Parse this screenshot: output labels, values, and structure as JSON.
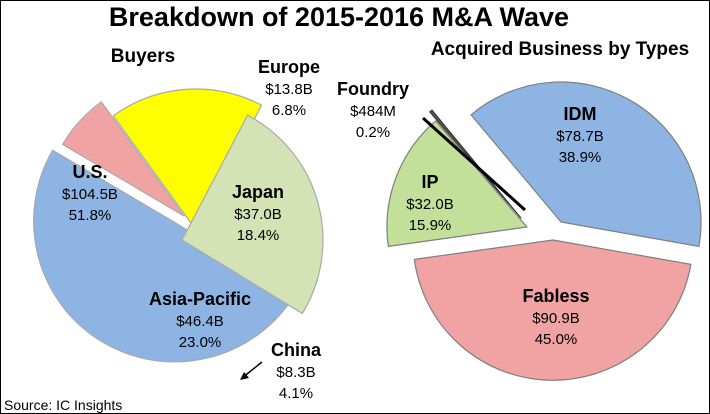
{
  "title": "Breakdown of 2015-2016 M&A Wave",
  "source": "Source: IC Insights",
  "colors": {
    "blue": "#8db4e2",
    "red": "#f1a3a3",
    "yellow": "#ffff00",
    "green": "#d4e3b5",
    "green_ip": "#c3e09a",
    "slice_stroke": "#a9a9a9",
    "outline": "#000000"
  },
  "chart_data": [
    {
      "type": "pie",
      "title": "Buyers",
      "unit": "$B",
      "slices": [
        {
          "name": "U.S.",
          "value_label": "$104.5B",
          "pct_label": "51.8%",
          "value": 104.5,
          "pct": 51.8,
          "color": "#8db4e2",
          "exploded": false
        },
        {
          "name": "Europe",
          "value_label": "$13.8B",
          "pct_label": "6.8%",
          "value": 13.8,
          "pct": 6.8,
          "color": "#f1a3a3",
          "exploded": true
        },
        {
          "name": "Japan",
          "value_label": "$37.0B",
          "pct_label": "18.4%",
          "value": 37.0,
          "pct": 18.4,
          "color": "#ffff00",
          "exploded": true
        },
        {
          "name": "Asia-Pacific",
          "value_label": "$46.4B",
          "pct_label": "23.0%",
          "value": 46.4,
          "pct": 23.0,
          "color": "#d4e3b5",
          "exploded": true
        },
        {
          "name": "China",
          "value_label": "$8.3B",
          "pct_label": "4.1%",
          "value": 8.3,
          "pct": 4.1,
          "color": "#d4e3b5",
          "exploded": true,
          "callout": true
        }
      ]
    },
    {
      "type": "pie",
      "title": "Acquired Business by Types",
      "unit": "$B",
      "slices": [
        {
          "name": "IDM",
          "value_label": "$78.7B",
          "pct_label": "38.9%",
          "value": 78.7,
          "pct": 38.9,
          "color": "#8db4e2",
          "exploded": false
        },
        {
          "name": "Fabless",
          "value_label": "$90.9B",
          "pct_label": "45.0%",
          "value": 90.9,
          "pct": 45.0,
          "color": "#f1a3a3",
          "exploded": false
        },
        {
          "name": "IP",
          "value_label": "$32.0B",
          "pct_label": "15.9%",
          "value": 32.0,
          "pct": 15.9,
          "color": "#c3e09a",
          "exploded": true
        },
        {
          "name": "Foundry",
          "value_label": "$484M",
          "pct_label": "0.2%",
          "value": 0.484,
          "pct": 0.2,
          "color": "#555555",
          "exploded": true,
          "callout": true
        }
      ]
    }
  ]
}
